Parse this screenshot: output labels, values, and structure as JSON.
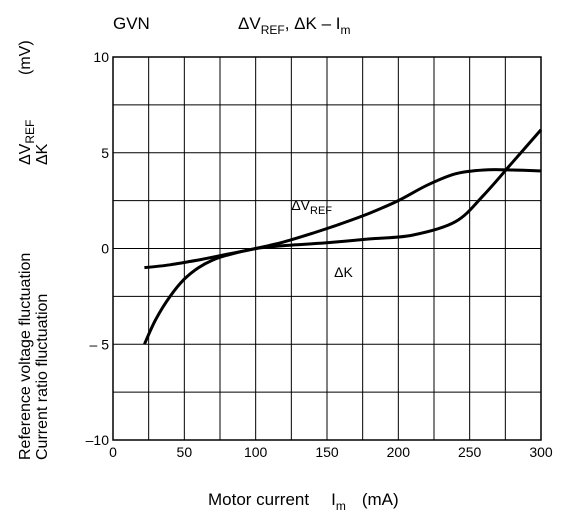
{
  "header": {
    "part_number": "GVN",
    "title_main": "ΔV",
    "title_sub1": "REF",
    "title_mid": ", ΔK – I",
    "title_sub2": "m"
  },
  "y_axis": {
    "line1": "Reference voltage fluctuation",
    "line2": "Current ratio fluctuation",
    "sym1_main": "ΔV",
    "sym1_sub": "REF",
    "sym2": "ΔK",
    "unit": "(mV)"
  },
  "x_axis": {
    "label_main": "Motor current",
    "label_sym": "I",
    "label_sub": "m",
    "unit": "(mA)"
  },
  "chart_data": {
    "type": "line",
    "xlim": [
      0,
      300
    ],
    "ylim": [
      -10,
      10
    ],
    "grid": true,
    "x_ticks": [
      0,
      50,
      100,
      150,
      200,
      250,
      300
    ],
    "x_tick_labels": [
      "0",
      "50",
      "100",
      "150",
      "200",
      "250",
      "300"
    ],
    "y_ticks": [
      10,
      5,
      0,
      -5,
      -10
    ],
    "y_tick_labels": [
      "10",
      "5",
      "0",
      "– 5",
      "–10"
    ],
    "series": [
      {
        "name": "ΔV_REF",
        "x": [
          22,
          40,
          60,
          80,
          100,
          120,
          140,
          160,
          180,
          200,
          220,
          240,
          260,
          280,
          300
        ],
        "y": [
          -1.0,
          -0.85,
          -0.6,
          -0.3,
          0.0,
          0.35,
          0.8,
          1.3,
          1.85,
          2.5,
          3.3,
          3.9,
          4.1,
          4.1,
          4.05
        ]
      },
      {
        "name": "ΔK",
        "x": [
          22,
          30,
          40,
          50,
          60,
          70,
          80,
          100,
          120,
          150,
          180,
          210,
          240,
          260,
          280,
          300
        ],
        "y": [
          -5.0,
          -3.7,
          -2.5,
          -1.6,
          -1.0,
          -0.6,
          -0.35,
          0.0,
          0.15,
          0.3,
          0.5,
          0.7,
          1.4,
          2.8,
          4.5,
          6.2
        ]
      }
    ],
    "annotations": [
      {
        "text_main": "ΔV",
        "text_sub": "REF"
      },
      {
        "text_main": "ΔK",
        "text_sub": ""
      }
    ]
  }
}
